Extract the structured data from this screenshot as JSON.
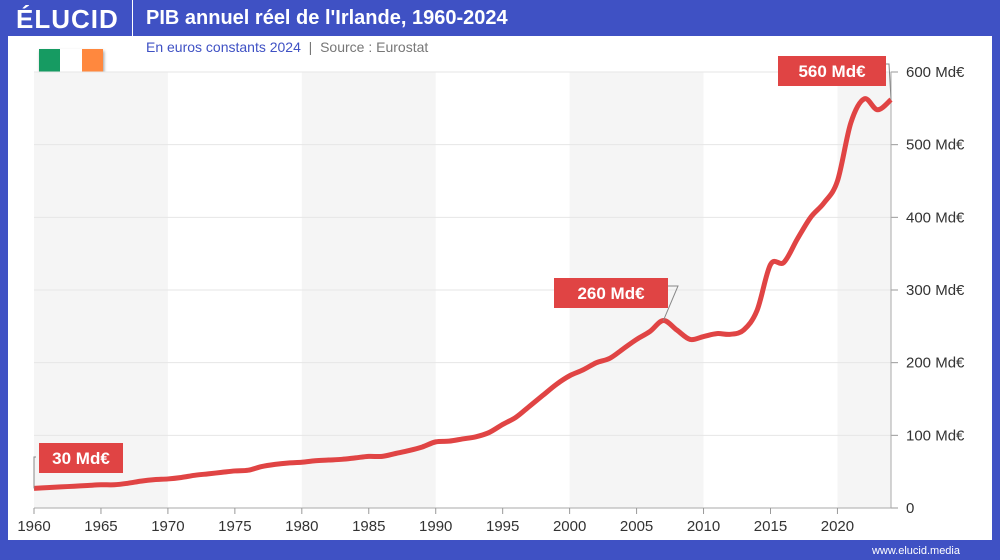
{
  "brand": "ÉLUCID",
  "header": {
    "title": "PIB annuel réel de l'Irlande, 1960-2024",
    "subtitle": "En euros constants 2024",
    "source": "Source : Eurostat"
  },
  "footer": {
    "url": "www.elucid.media"
  },
  "flag_colors": [
    "#169b62",
    "#ffffff",
    "#ff883e"
  ],
  "colors": {
    "line": "#e04444",
    "brand": "#3f51c4",
    "band": "#f5f5f5"
  },
  "chart_data": {
    "type": "line",
    "title": "PIB annuel réel de l'Irlande, 1960-2024",
    "xlim": [
      1960,
      2024
    ],
    "ylim": [
      0,
      600
    ],
    "x_ticks": [
      1960,
      1965,
      1970,
      1975,
      1980,
      1985,
      1990,
      1995,
      2000,
      2005,
      2010,
      2015,
      2020
    ],
    "y_ticks": [
      {
        "v": 0,
        "label": "0"
      },
      {
        "v": 100,
        "label": "100 Md€"
      },
      {
        "v": 200,
        "label": "200 Md€"
      },
      {
        "v": 300,
        "label": "300 Md€"
      },
      {
        "v": 400,
        "label": "400 Md€"
      },
      {
        "v": 500,
        "label": "500 Md€"
      },
      {
        "v": 600,
        "label": "600 Md€"
      }
    ],
    "y_axis_position": "right",
    "grid": true,
    "shaded_decades": [
      [
        1960,
        1970
      ],
      [
        1980,
        1990
      ],
      [
        2000,
        2010
      ],
      [
        2020,
        2024
      ]
    ],
    "x": [
      1960,
      1961,
      1962,
      1963,
      1964,
      1965,
      1966,
      1967,
      1968,
      1969,
      1970,
      1971,
      1972,
      1973,
      1974,
      1975,
      1976,
      1977,
      1978,
      1979,
      1980,
      1981,
      1982,
      1983,
      1984,
      1985,
      1986,
      1987,
      1988,
      1989,
      1990,
      1991,
      1992,
      1993,
      1994,
      1995,
      1996,
      1997,
      1998,
      1999,
      2000,
      2001,
      2002,
      2003,
      2004,
      2005,
      2006,
      2007,
      2008,
      2009,
      2010,
      2011,
      2012,
      2013,
      2014,
      2015,
      2016,
      2017,
      2018,
      2019,
      2020,
      2021,
      2022,
      2023,
      2024
    ],
    "values": [
      27,
      28,
      29,
      30,
      31,
      32,
      32,
      34,
      37,
      39,
      40,
      42,
      45,
      47,
      49,
      51,
      52,
      57,
      60,
      62,
      63,
      65,
      66,
      67,
      69,
      71,
      71,
      75,
      79,
      84,
      91,
      92,
      95,
      98,
      104,
      115,
      125,
      140,
      155,
      170,
      182,
      190,
      200,
      206,
      219,
      232,
      243,
      258,
      245,
      232,
      236,
      240,
      239,
      245,
      272,
      335,
      338,
      370,
      400,
      420,
      450,
      530,
      563,
      548,
      562
    ],
    "annotations": [
      {
        "x": 1960,
        "y": 27,
        "label": "30 Md€"
      },
      {
        "x": 2007,
        "y": 258,
        "label": "260 Md€"
      },
      {
        "x": 2024,
        "y": 562,
        "label": "560 Md€"
      }
    ]
  }
}
